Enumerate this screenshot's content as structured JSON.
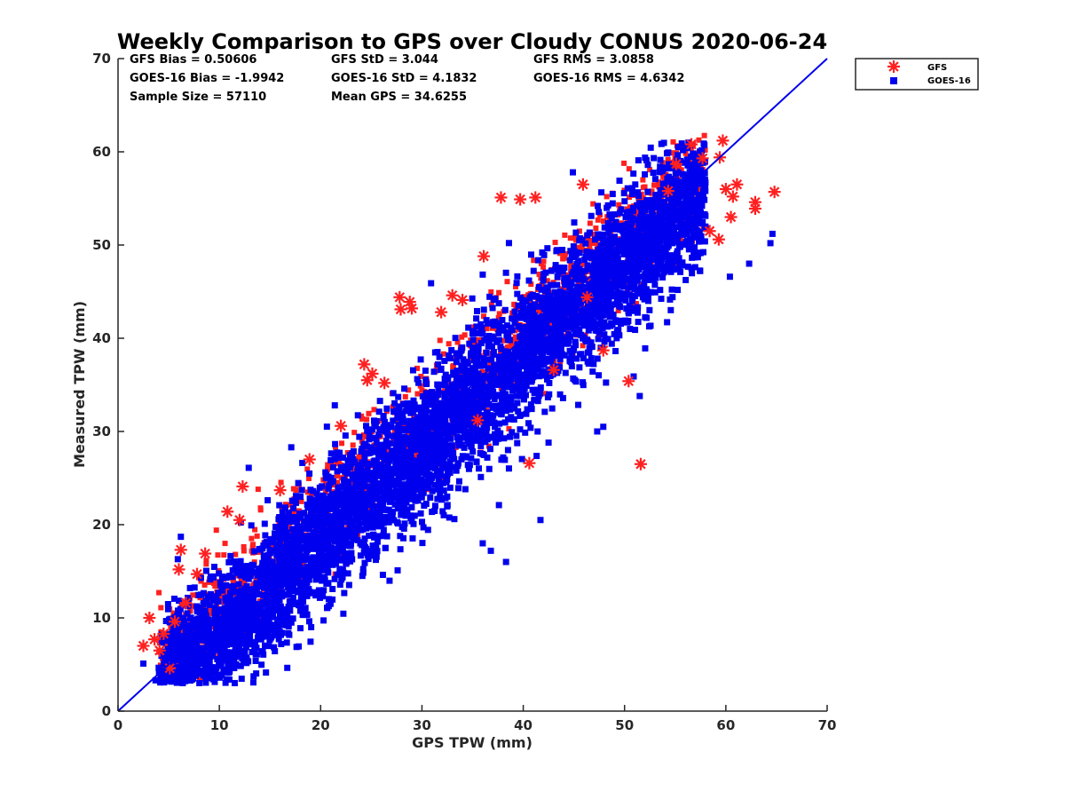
{
  "chart_data": {
    "type": "scatter",
    "title": "Weekly Comparison to GPS over Cloudy CONUS 2020-06-24",
    "xlabel": "GPS TPW (mm)",
    "ylabel": "Measured TPW (mm)",
    "xlim": [
      0,
      70
    ],
    "ylim": [
      0,
      70
    ],
    "xticks": [
      "0",
      "10",
      "20",
      "30",
      "40",
      "50",
      "60",
      "70"
    ],
    "yticks": [
      "0",
      "10",
      "20",
      "30",
      "40",
      "50",
      "60",
      "70"
    ],
    "grid": false,
    "legend_position": "outside-top-right",
    "stats": [
      [
        "GFS Bias = 0.50606",
        "GFS StD = 3.044",
        "GFS RMS = 3.0858"
      ],
      [
        "GOES-16 Bias = -1.9942",
        "GOES-16 StD = 4.1832",
        "GOES-16 RMS = 4.6342"
      ],
      [
        "Sample Size = 57110",
        "Mean GPS = 34.6255",
        ""
      ]
    ],
    "reference_line": {
      "from": [
        0,
        0
      ],
      "to": [
        70,
        70
      ],
      "color": "#0000ee"
    },
    "series": [
      {
        "name": "GFS",
        "marker": "asterisk",
        "color": "#ff2020",
        "points": [
          [
            2.5,
            7.0
          ],
          [
            3.1,
            10.0
          ],
          [
            3.6,
            7.7
          ],
          [
            4.1,
            6.5
          ],
          [
            4.5,
            8.3
          ],
          [
            5.1,
            4.6
          ],
          [
            5.6,
            9.6
          ],
          [
            6.0,
            15.2
          ],
          [
            6.2,
            17.3
          ],
          [
            6.7,
            11.6
          ],
          [
            7.8,
            14.7
          ],
          [
            8.6,
            16.9
          ],
          [
            10.8,
            21.4
          ],
          [
            12.3,
            24.1
          ],
          [
            12.0,
            20.5
          ],
          [
            16.0,
            23.7
          ],
          [
            18.9,
            27.0
          ],
          [
            22.0,
            30.6
          ],
          [
            24.3,
            37.2
          ],
          [
            24.6,
            35.5
          ],
          [
            25.1,
            36.2
          ],
          [
            26.3,
            35.2
          ],
          [
            27.8,
            44.4
          ],
          [
            28.8,
            43.9
          ],
          [
            27.9,
            43.1
          ],
          [
            29.0,
            43.2
          ],
          [
            31.9,
            42.8
          ],
          [
            33.0,
            44.6
          ],
          [
            34.0,
            44.1
          ],
          [
            36.1,
            48.8
          ],
          [
            37.8,
            55.1
          ],
          [
            39.7,
            54.9
          ],
          [
            41.2,
            55.1
          ],
          [
            45.9,
            56.5
          ],
          [
            50.4,
            35.4
          ],
          [
            54.3,
            55.8
          ],
          [
            56.6,
            60.8
          ],
          [
            57.7,
            59.3
          ],
          [
            59.4,
            59.4
          ],
          [
            59.7,
            61.2
          ],
          [
            60.0,
            56.0
          ],
          [
            60.7,
            55.2
          ],
          [
            61.1,
            56.5
          ],
          [
            60.5,
            53.0
          ],
          [
            62.9,
            53.9
          ],
          [
            62.9,
            54.6
          ],
          [
            64.8,
            55.7
          ],
          [
            59.3,
            50.6
          ],
          [
            58.4,
            51.5
          ],
          [
            43.0,
            36.6
          ],
          [
            47.9,
            38.7
          ],
          [
            51.6,
            26.5
          ],
          [
            40.6,
            26.6
          ],
          [
            35.5,
            31.2
          ],
          [
            46.3,
            44.4
          ],
          [
            55.1,
            58.7
          ]
        ]
      },
      {
        "name": "GOES-16",
        "marker": "square",
        "color": "#0000ee",
        "points": [
          [
            2.5,
            5.1
          ],
          [
            3.7,
            3.3
          ],
          [
            4.8,
            4.2
          ],
          [
            5.1,
            4.0
          ],
          [
            6.2,
            18.7
          ],
          [
            5.9,
            16.3
          ],
          [
            12.9,
            26.1
          ],
          [
            17.1,
            28.3
          ],
          [
            21.4,
            32.8
          ],
          [
            27.6,
            15.1
          ],
          [
            30.9,
            45.9
          ],
          [
            40.2,
            35.4
          ],
          [
            37.6,
            22.1
          ],
          [
            36.8,
            17.2
          ],
          [
            38.3,
            16.0
          ],
          [
            41.7,
            20.5
          ],
          [
            47.3,
            30.0
          ],
          [
            50.9,
            35.9
          ],
          [
            51.5,
            33.8
          ],
          [
            44.9,
            57.8
          ],
          [
            49.5,
            56.9
          ],
          [
            52.3,
            58.6
          ],
          [
            53.5,
            58.4
          ],
          [
            55.3,
            60.5
          ],
          [
            64.4,
            50.2
          ],
          [
            64.6,
            51.2
          ],
          [
            62.3,
            48.0
          ],
          [
            60.4,
            46.6
          ],
          [
            57.2,
            50.9
          ],
          [
            47.9,
            30.5
          ],
          [
            42.5,
            28.8
          ],
          [
            36.0,
            18.0
          ],
          [
            33.2,
            20.6
          ],
          [
            26.4,
            17.5
          ]
        ]
      }
    ]
  }
}
